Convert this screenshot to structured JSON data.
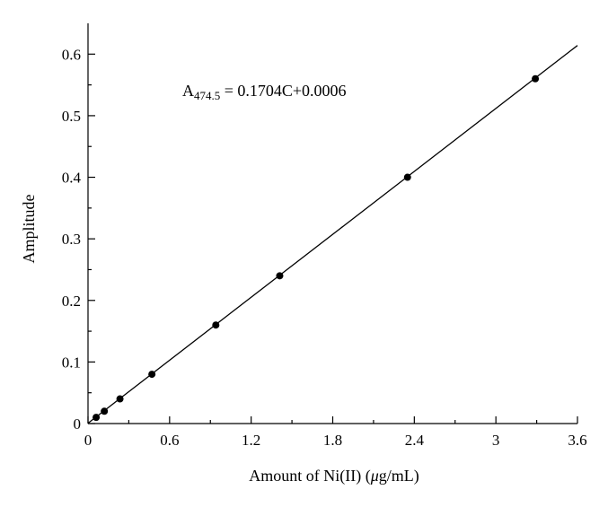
{
  "chart_data": {
    "type": "scatter",
    "title": "",
    "xlabel": "Amount of Ni(II) (μg/mL)",
    "xlabel_parts": {
      "prefix": "Amount of Ni(II) (",
      "mu": "μ",
      "suffix": "g/mL)"
    },
    "ylabel": "Amplitude",
    "xlim": [
      0,
      3.6
    ],
    "ylim": [
      0,
      0.65
    ],
    "xticks": [
      0,
      0.6,
      1.2,
      1.8,
      2.4,
      3,
      3.6
    ],
    "xtick_labels": [
      "0",
      "0.6",
      "1.2",
      "1.8",
      "2.4",
      "3",
      "3.6"
    ],
    "yticks": [
      0,
      0.1,
      0.2,
      0.3,
      0.4,
      0.5,
      0.6
    ],
    "ytick_labels": [
      "0",
      "0.1",
      "0.2",
      "0.3",
      "0.4",
      "0.5",
      "0.6"
    ],
    "grid": false,
    "points": {
      "x": [
        0.06,
        0.12,
        0.235,
        0.47,
        0.94,
        1.41,
        2.35,
        3.29
      ],
      "y": [
        0.01,
        0.02,
        0.04,
        0.08,
        0.16,
        0.24,
        0.4,
        0.56
      ]
    },
    "fit": {
      "slope": 0.1704,
      "intercept": 0.0006,
      "x_range": [
        0,
        3.6
      ]
    },
    "annotation": {
      "symbol": "A",
      "subscript": "474.5",
      "text": " = 0.1704C+0.0006"
    }
  }
}
